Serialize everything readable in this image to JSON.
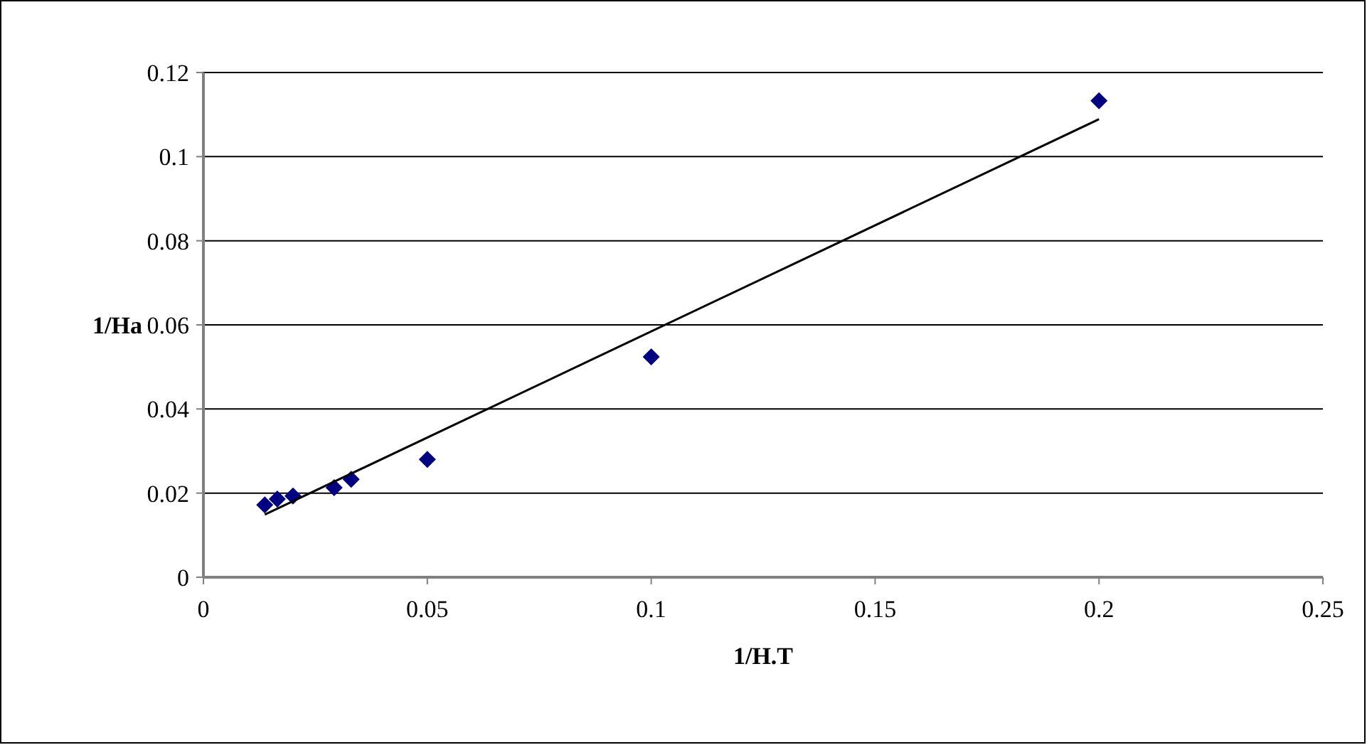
{
  "chart_data": {
    "type": "scatter",
    "xlabel": "1/H.T",
    "ylabel": "1/Ha",
    "xlim": [
      0,
      0.25
    ],
    "xticks": [
      0,
      0.05,
      0.1,
      0.15,
      0.2,
      0.25
    ],
    "ylim": [
      0,
      0.12
    ],
    "yticks": [
      0,
      0.02,
      0.04,
      0.06,
      0.08,
      0.1,
      0.12
    ],
    "grid": "y",
    "series": [
      {
        "marker": "diamond",
        "color": "#000080",
        "x": [
          0.0137,
          0.0165,
          0.02,
          0.0292,
          0.033,
          0.05,
          0.1,
          0.2
        ],
        "values": [
          0.0172,
          0.0186,
          0.0193,
          0.0213,
          0.0233,
          0.028,
          0.0524,
          0.1133
        ]
      },
      {
        "type": "line",
        "color": "#000000",
        "x": [
          0.0137,
          0.2
        ],
        "values": [
          0.0149,
          0.1089
        ]
      }
    ]
  }
}
